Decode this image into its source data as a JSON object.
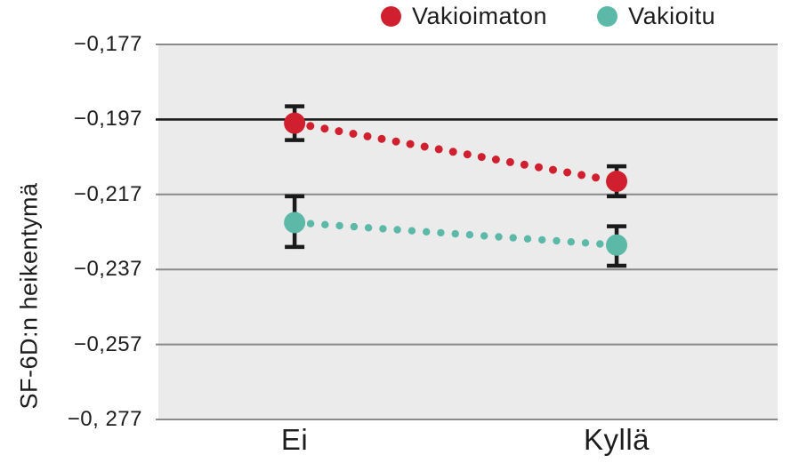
{
  "figure": {
    "background": "#ffffff",
    "text_color": "#1d1d1d"
  },
  "chart_data": {
    "type": "line",
    "subtype": "point-estimates-with-error-bars-and-dotted-connectors",
    "title": "",
    "xlabel": "",
    "ylabel": "SF-6D:n heikentymä",
    "categories": [
      "Ei",
      "Kyllä"
    ],
    "series": [
      {
        "name": "Vakioimaton",
        "color": "#d0202f",
        "values": [
          -0.198,
          -0.2135
        ],
        "ci_low": [
          -0.2025,
          -0.2175
        ],
        "ci_high": [
          -0.1935,
          -0.2095
        ]
      },
      {
        "name": "Vakioitu",
        "color": "#5cb9a7",
        "values": [
          -0.2245,
          -0.2305
        ],
        "ci_low": [
          -0.231,
          -0.236
        ],
        "ci_high": [
          -0.2175,
          -0.2255
        ]
      }
    ],
    "ylim": [
      -0.277,
      -0.177
    ],
    "yticks": [
      {
        "label": "−0,177",
        "value": -0.177,
        "emphasized": false
      },
      {
        "label": "−0,197",
        "value": -0.197,
        "emphasized": true
      },
      {
        "label": "−0,217",
        "value": -0.217,
        "emphasized": false
      },
      {
        "label": "−0,237",
        "value": -0.237,
        "emphasized": false
      },
      {
        "label": "−0,257",
        "value": -0.257,
        "emphasized": false
      },
      {
        "label": "−0, 277",
        "value": -0.277,
        "emphasized": false
      }
    ],
    "grid": true,
    "legend_position": "top-right",
    "line_style": "dotted",
    "plot_background": "#ebebeb",
    "gridline_color": "#8a8a8a",
    "emphasized_gridline_color": "#1b1b1b",
    "errorbar_color": "#1a1a1a"
  }
}
